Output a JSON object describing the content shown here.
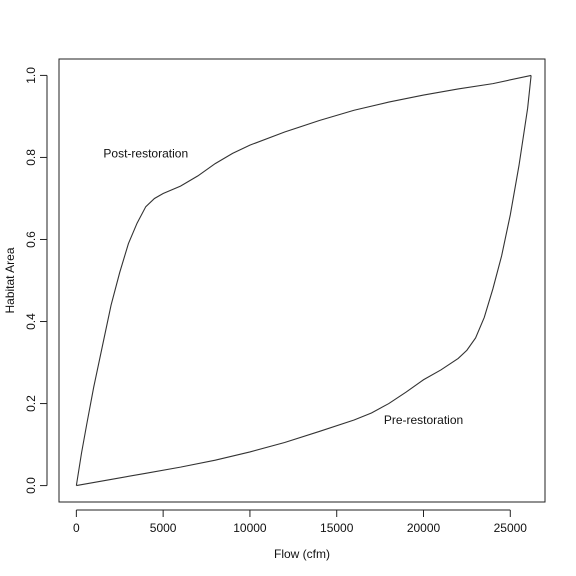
{
  "chart_data": {
    "type": "line",
    "title": "",
    "xlabel": "Flow (cfm)",
    "ylabel": "Habitat Area",
    "xlim": [
      -1000,
      27000
    ],
    "ylim": [
      -0.04,
      1.04
    ],
    "x_ticks": [
      0,
      5000,
      10000,
      15000,
      20000,
      25000
    ],
    "y_ticks": [
      0.0,
      0.2,
      0.4,
      0.6,
      0.8,
      1.0
    ],
    "x_tick_labels": [
      "0",
      "5000",
      "10000",
      "15000",
      "20000",
      "25000"
    ],
    "y_tick_labels": [
      "0.0",
      "0.2",
      "0.4",
      "0.6",
      "0.8",
      "1.0"
    ],
    "grid": false,
    "series": [
      {
        "name": "Post-restoration",
        "color": "#333333",
        "points": [
          [
            0,
            0.0
          ],
          [
            300,
            0.08
          ],
          [
            600,
            0.15
          ],
          [
            1000,
            0.24
          ],
          [
            1500,
            0.34
          ],
          [
            2000,
            0.44
          ],
          [
            2500,
            0.52
          ],
          [
            3000,
            0.59
          ],
          [
            3500,
            0.64
          ],
          [
            4000,
            0.68
          ],
          [
            4500,
            0.7
          ],
          [
            5000,
            0.712
          ],
          [
            6000,
            0.73
          ],
          [
            7000,
            0.755
          ],
          [
            8000,
            0.785
          ],
          [
            9000,
            0.81
          ],
          [
            10000,
            0.83
          ],
          [
            12000,
            0.862
          ],
          [
            14000,
            0.89
          ],
          [
            16000,
            0.915
          ],
          [
            18000,
            0.935
          ],
          [
            20000,
            0.952
          ],
          [
            22000,
            0.967
          ],
          [
            24000,
            0.98
          ],
          [
            26200,
            1.0
          ]
        ]
      },
      {
        "name": "Pre-restoration",
        "color": "#333333",
        "points": [
          [
            0,
            0.0
          ],
          [
            2000,
            0.015
          ],
          [
            4000,
            0.03
          ],
          [
            6000,
            0.045
          ],
          [
            8000,
            0.062
          ],
          [
            10000,
            0.082
          ],
          [
            12000,
            0.105
          ],
          [
            14000,
            0.132
          ],
          [
            16000,
            0.16
          ],
          [
            17000,
            0.177
          ],
          [
            18000,
            0.2
          ],
          [
            19000,
            0.228
          ],
          [
            20000,
            0.258
          ],
          [
            21000,
            0.282
          ],
          [
            22000,
            0.31
          ],
          [
            22500,
            0.33
          ],
          [
            23000,
            0.36
          ],
          [
            23500,
            0.41
          ],
          [
            24000,
            0.48
          ],
          [
            24500,
            0.56
          ],
          [
            25000,
            0.66
          ],
          [
            25500,
            0.78
          ],
          [
            26000,
            0.92
          ],
          [
            26200,
            1.0
          ]
        ]
      }
    ],
    "annotations": [
      {
        "text": "Post-restoration",
        "x": 4000,
        "y": 0.8
      },
      {
        "text": "Pre-restoration",
        "x": 20000,
        "y": 0.15
      }
    ]
  }
}
